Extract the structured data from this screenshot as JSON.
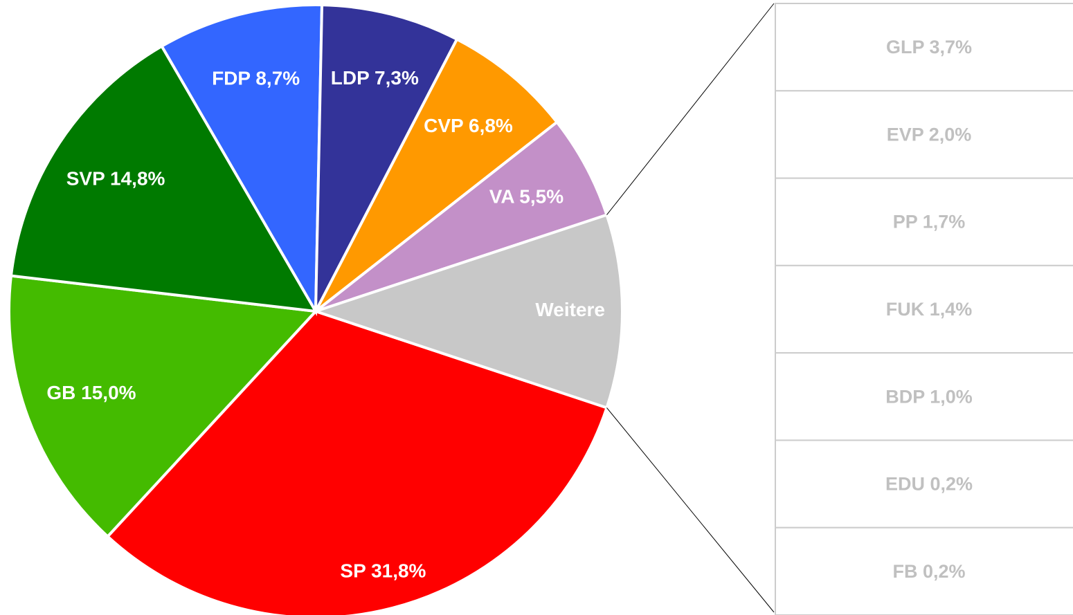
{
  "chart_data": {
    "type": "pie-of-bar",
    "categories": [
      "SP",
      "GB",
      "SVP",
      "FDP",
      "LDP",
      "CVP",
      "VA",
      "Weitere"
    ],
    "values": [
      31.8,
      15.0,
      14.8,
      8.7,
      7.3,
      6.8,
      5.5,
      10.2
    ],
    "value_labels": [
      "31,8%",
      "15,0%",
      "14,8%",
      "8,7%",
      "7,3%",
      "6,8%",
      "5,5%",
      null
    ],
    "colors": [
      "#ff0000",
      "#44bb00",
      "#007a00",
      "#3366ff",
      "#333399",
      "#ff9900",
      "#c390c8",
      "#c8c8c8"
    ],
    "bar": {
      "categories": [
        "GLP",
        "EVP",
        "PP",
        "FUK",
        "BDP",
        "EDU",
        "FB"
      ],
      "values": [
        3.7,
        2.0,
        1.7,
        1.4,
        1.0,
        0.2,
        0.2
      ],
      "value_labels": [
        "3,7%",
        "2,0%",
        "1,7%",
        "1,4%",
        "1,0%",
        "0,2%",
        "0,2%"
      ]
    }
  }
}
